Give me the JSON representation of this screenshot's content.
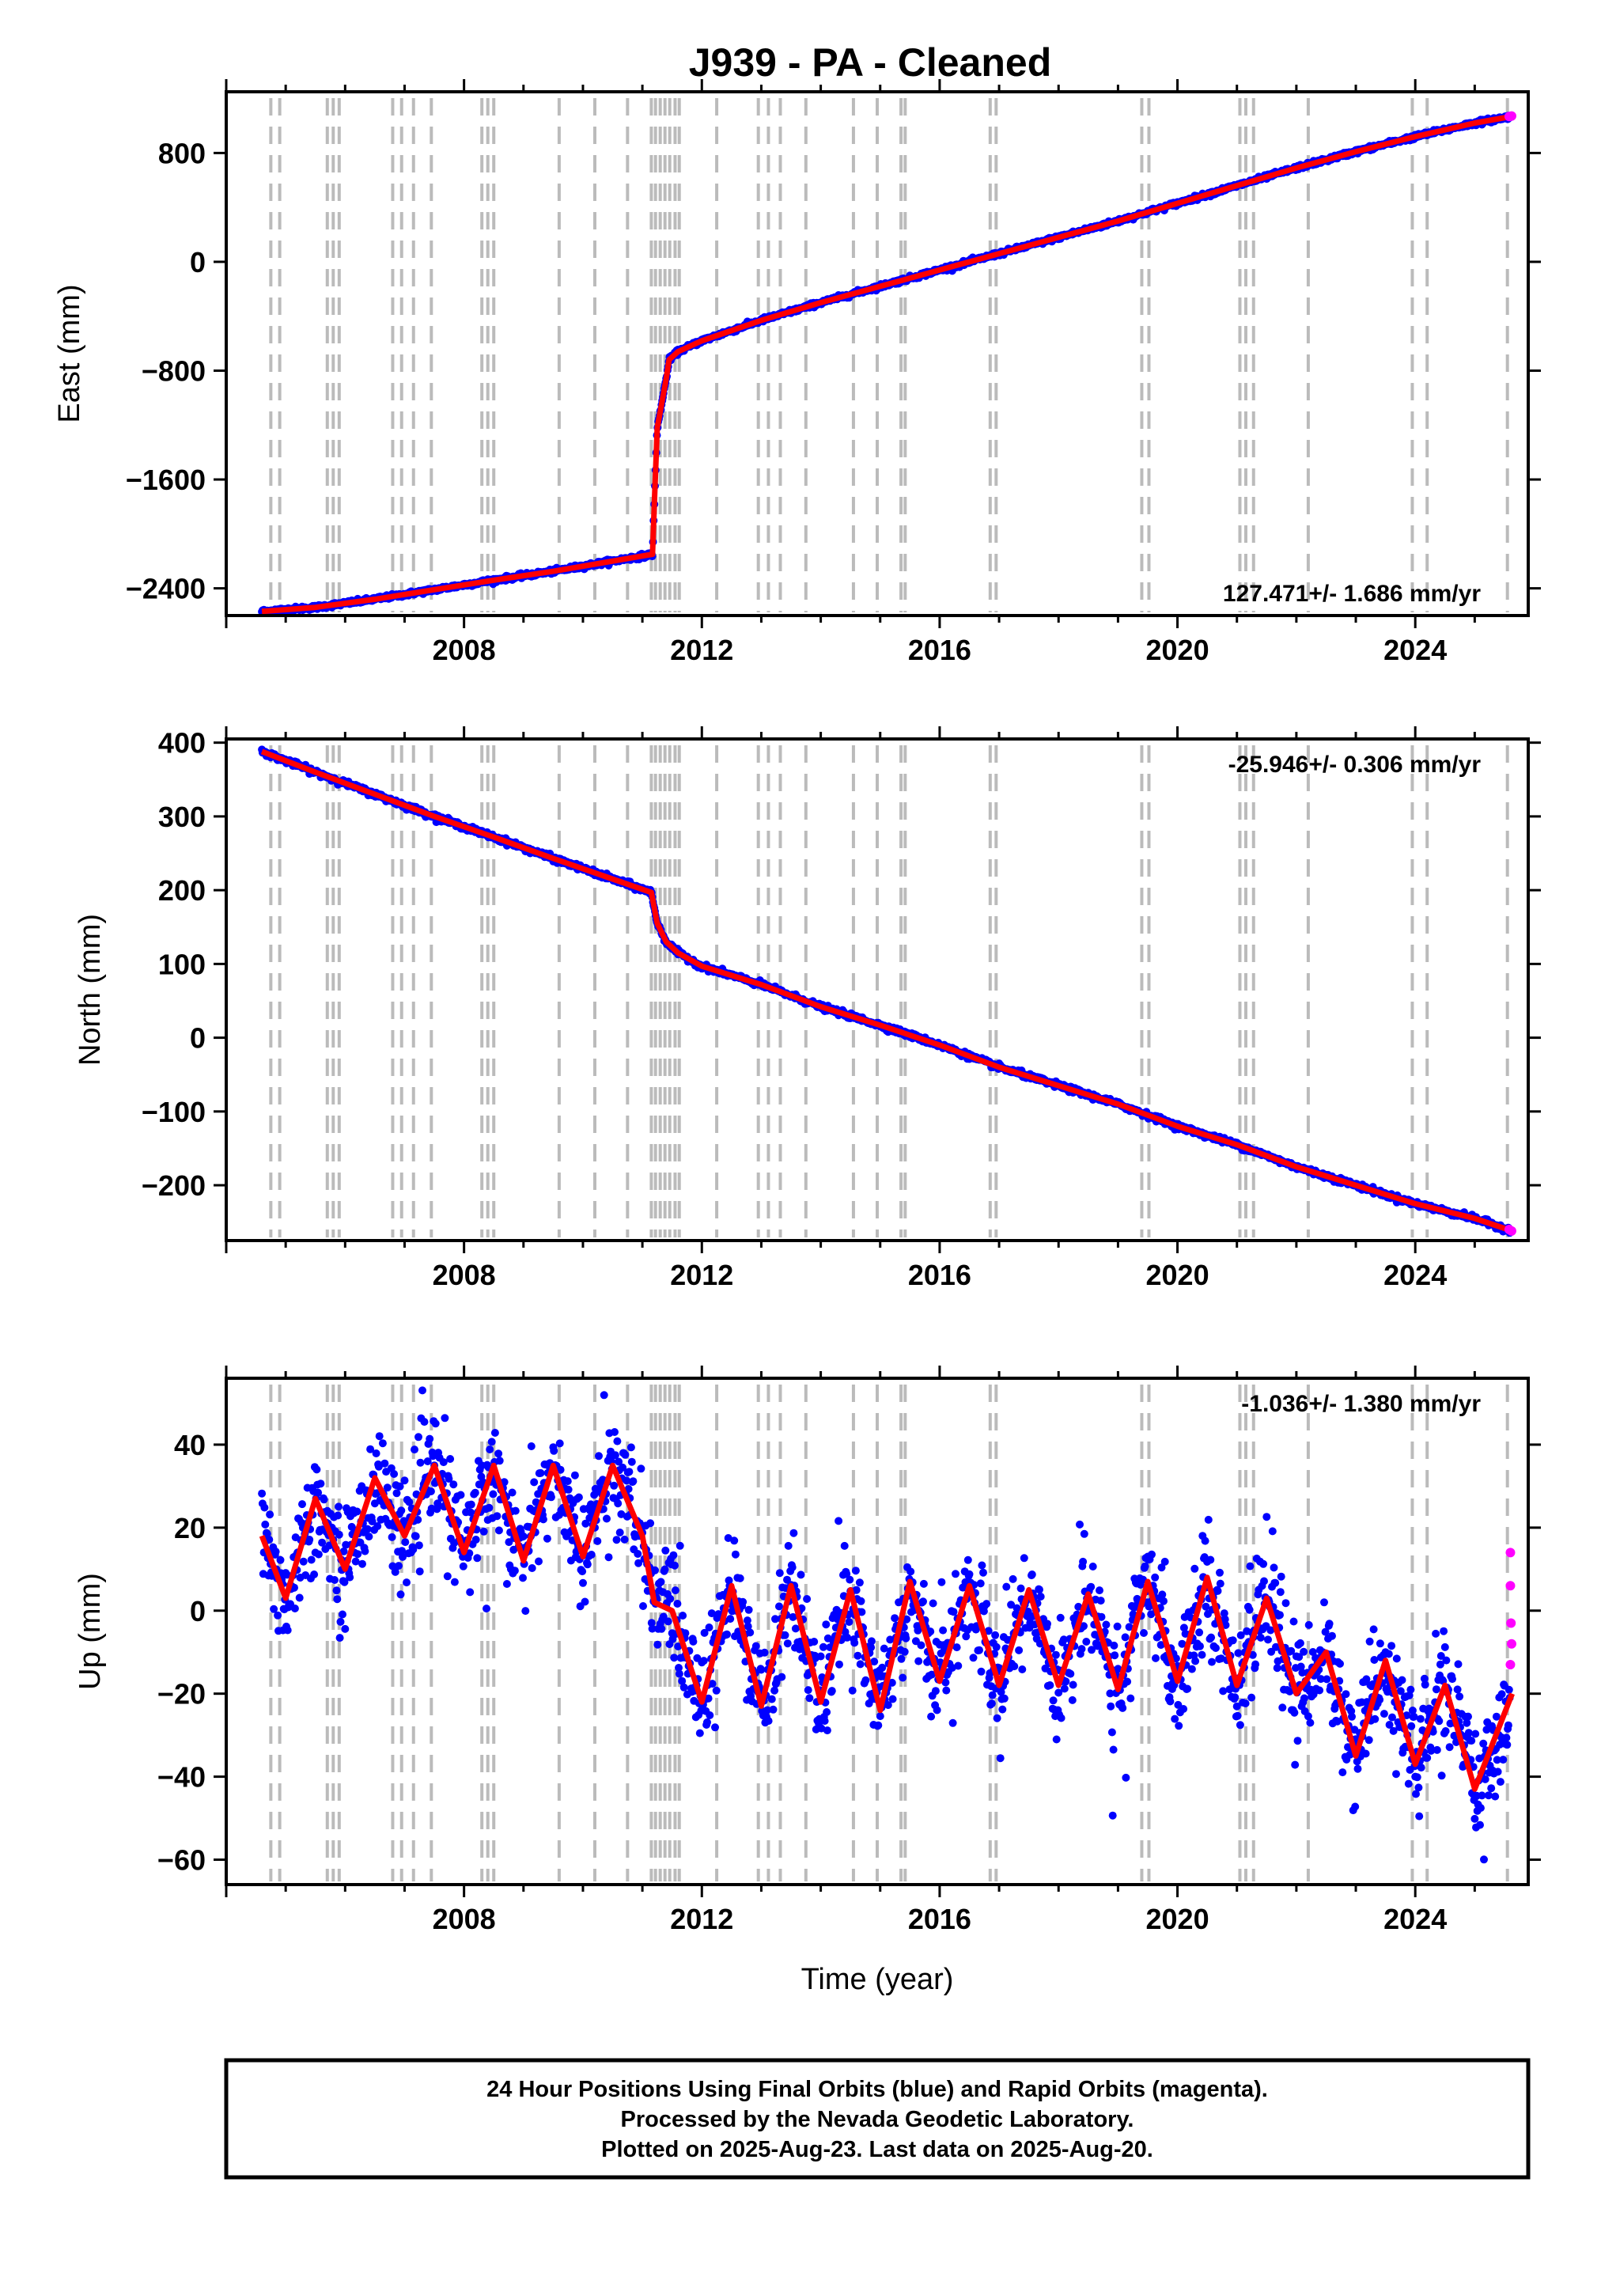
{
  "title": "J939  - PA - Cleaned",
  "footer": {
    "line1": "24 Hour Positions Using Final Orbits (blue) and Rapid Orbits (magenta).",
    "line2": "Processed by the Nevada Geodetic Laboratory.",
    "line3": "Plotted on 2025-Aug-23. Last data on 2025-Aug-20."
  },
  "colors": {
    "final_orbits": "#0000ff",
    "rapid_orbits": "#ff00ff",
    "model": "#ff0000",
    "event_lines": "#bbbbbb"
  },
  "chart_data": [
    {
      "type": "scatter",
      "panel": "east",
      "ylabel": "East (mm)",
      "xlabel": "",
      "xlim": [
        2004.0,
        2025.9
      ],
      "ylim": [
        -2600,
        1250
      ],
      "xticks": [
        "2008",
        "2012",
        "2016",
        "2020",
        "2024"
      ],
      "yticks": [
        "800",
        "0",
        "−800",
        "−1600",
        "−2400"
      ],
      "rate_label": "127.471+/- 1.686 mm/yr",
      "rate_position": "bottom-right",
      "start_year": 2004.6,
      "end_year": 2025.63,
      "model_points": [
        [
          2004.6,
          -2570
        ],
        [
          2005.5,
          -2540
        ],
        [
          2006.5,
          -2480
        ],
        [
          2007.5,
          -2410
        ],
        [
          2008.5,
          -2340
        ],
        [
          2009.5,
          -2275
        ],
        [
          2010.5,
          -2200
        ],
        [
          2011.17,
          -2150
        ],
        [
          2011.2,
          -1780
        ],
        [
          2011.25,
          -1220
        ],
        [
          2011.33,
          -1030
        ],
        [
          2011.4,
          -860
        ],
        [
          2011.45,
          -720
        ],
        [
          2011.6,
          -660
        ],
        [
          2012.0,
          -580
        ],
        [
          2013.0,
          -430
        ],
        [
          2014.0,
          -300
        ],
        [
          2015.0,
          -180
        ],
        [
          2016.0,
          -60
        ],
        [
          2017.0,
          60
        ],
        [
          2018.0,
          180
        ],
        [
          2019.0,
          300
        ],
        [
          2020.0,
          430
        ],
        [
          2021.0,
          560
        ],
        [
          2022.0,
          690
        ],
        [
          2023.0,
          810
        ],
        [
          2024.0,
          920
        ],
        [
          2025.0,
          1020
        ],
        [
          2025.63,
          1070
        ]
      ],
      "rapid_points": [
        [
          2025.58,
          1068
        ],
        [
          2025.62,
          1072
        ]
      ],
      "event_lines": [
        2004.75,
        2004.9,
        2005.7,
        2005.8,
        2005.9,
        2006.8,
        2006.95,
        2007.15,
        2007.45,
        2008.3,
        2008.4,
        2008.5,
        2009.6,
        2010.2,
        2010.75,
        2011.15,
        2011.22,
        2011.3,
        2011.38,
        2011.46,
        2011.55,
        2011.62,
        2012.25,
        2012.95,
        2013.12,
        2013.32,
        2013.75,
        2014.55,
        2014.95,
        2015.35,
        2015.42,
        2016.85,
        2016.95,
        2019.4,
        2019.52,
        2021.05,
        2021.15,
        2021.28,
        2022.2,
        2023.95,
        2024.2,
        2025.55
      ]
    },
    {
      "type": "scatter",
      "panel": "north",
      "ylabel": "North (mm)",
      "xlabel": "",
      "xlim": [
        2004.0,
        2025.9
      ],
      "ylim": [
        -275,
        405
      ],
      "xticks": [
        "2008",
        "2012",
        "2016",
        "2020",
        "2024"
      ],
      "yticks": [
        "400",
        "300",
        "200",
        "100",
        "0",
        "−100",
        "−200"
      ],
      "rate_label": "-25.946+/- 0.306 mm/yr",
      "rate_position": "top-right",
      "start_year": 2004.6,
      "end_year": 2025.63,
      "model_points": [
        [
          2004.6,
          388
        ],
        [
          2005.5,
          360
        ],
        [
          2006.5,
          330
        ],
        [
          2007.5,
          300
        ],
        [
          2008.5,
          272
        ],
        [
          2009.5,
          243
        ],
        [
          2010.5,
          215
        ],
        [
          2011.15,
          197
        ],
        [
          2011.25,
          155
        ],
        [
          2011.4,
          130
        ],
        [
          2011.6,
          115
        ],
        [
          2012.0,
          97
        ],
        [
          2013.0,
          72
        ],
        [
          2014.0,
          42
        ],
        [
          2015.0,
          17
        ],
        [
          2016.0,
          -10
        ],
        [
          2017.0,
          -40
        ],
        [
          2018.0,
          -65
        ],
        [
          2019.0,
          -90
        ],
        [
          2020.0,
          -120
        ],
        [
          2021.0,
          -145
        ],
        [
          2022.0,
          -175
        ],
        [
          2023.0,
          -200
        ],
        [
          2024.0,
          -225
        ],
        [
          2025.0,
          -245
        ],
        [
          2025.63,
          -262
        ]
      ],
      "rapid_points": [
        [
          2025.58,
          -260
        ],
        [
          2025.62,
          -262
        ]
      ],
      "event_lines": [
        2004.75,
        2004.9,
        2005.7,
        2005.8,
        2005.9,
        2006.8,
        2006.95,
        2007.15,
        2007.45,
        2008.3,
        2008.4,
        2008.5,
        2009.6,
        2010.2,
        2010.75,
        2011.15,
        2011.22,
        2011.3,
        2011.38,
        2011.46,
        2011.55,
        2011.62,
        2012.25,
        2012.95,
        2013.12,
        2013.32,
        2013.75,
        2014.55,
        2014.95,
        2015.35,
        2015.42,
        2016.85,
        2016.95,
        2019.4,
        2019.52,
        2021.05,
        2021.15,
        2021.28,
        2022.2,
        2023.95,
        2024.2,
        2025.55
      ]
    },
    {
      "type": "scatter",
      "panel": "up",
      "ylabel": "Up (mm)",
      "xlabel": "Time (year)",
      "xlim": [
        2004.0,
        2025.9
      ],
      "ylim": [
        -66,
        56
      ],
      "xticks": [
        "2008",
        "2012",
        "2016",
        "2020",
        "2024"
      ],
      "yticks": [
        "40",
        "20",
        "0",
        "−20",
        "−40",
        "−60"
      ],
      "rate_label": "-1.036+/- 1.380 mm/yr",
      "rate_position": "top-right",
      "start_year": 2004.6,
      "end_year": 2025.63,
      "seasonal_amplitude_mm": 15,
      "model_points": [
        [
          2004.6,
          18
        ],
        [
          2005.0,
          3
        ],
        [
          2005.5,
          27
        ],
        [
          2006.0,
          10
        ],
        [
          2006.5,
          32
        ],
        [
          2007.0,
          18
        ],
        [
          2007.5,
          35
        ],
        [
          2008.0,
          14
        ],
        [
          2008.5,
          35
        ],
        [
          2009.0,
          12
        ],
        [
          2009.5,
          35
        ],
        [
          2010.0,
          13
        ],
        [
          2010.5,
          35
        ],
        [
          2011.0,
          18
        ],
        [
          2011.2,
          2
        ],
        [
          2011.5,
          0
        ],
        [
          2012.0,
          -22
        ],
        [
          2012.5,
          6
        ],
        [
          2013.0,
          -23
        ],
        [
          2013.5,
          6
        ],
        [
          2014.0,
          -22
        ],
        [
          2014.5,
          5
        ],
        [
          2015.0,
          -24
        ],
        [
          2015.5,
          7
        ],
        [
          2016.0,
          -17
        ],
        [
          2016.5,
          6
        ],
        [
          2017.0,
          -18
        ],
        [
          2017.5,
          5
        ],
        [
          2018.0,
          -18
        ],
        [
          2018.5,
          4
        ],
        [
          2019.0,
          -19
        ],
        [
          2019.5,
          7
        ],
        [
          2020.0,
          -17
        ],
        [
          2020.5,
          8
        ],
        [
          2021.0,
          -18
        ],
        [
          2021.5,
          3
        ],
        [
          2022.0,
          -20
        ],
        [
          2022.5,
          -10
        ],
        [
          2023.0,
          -35
        ],
        [
          2023.5,
          -12
        ],
        [
          2024.0,
          -37
        ],
        [
          2024.5,
          -18
        ],
        [
          2025.0,
          -43
        ],
        [
          2025.63,
          -20
        ]
      ],
      "rapid_points": [
        [
          2025.6,
          14
        ],
        [
          2025.6,
          6
        ],
        [
          2025.61,
          -3
        ],
        [
          2025.62,
          -8
        ],
        [
          2025.6,
          -13
        ]
      ],
      "event_lines": [
        2004.75,
        2004.9,
        2005.7,
        2005.8,
        2005.9,
        2006.8,
        2006.95,
        2007.15,
        2007.45,
        2008.3,
        2008.4,
        2008.5,
        2009.6,
        2010.2,
        2010.75,
        2011.15,
        2011.22,
        2011.3,
        2011.38,
        2011.46,
        2011.55,
        2011.62,
        2012.25,
        2012.95,
        2013.12,
        2013.32,
        2013.75,
        2014.55,
        2014.95,
        2015.35,
        2015.42,
        2016.85,
        2016.95,
        2019.4,
        2019.52,
        2021.05,
        2021.15,
        2021.28,
        2022.2,
        2023.95,
        2024.2,
        2025.55
      ]
    }
  ]
}
